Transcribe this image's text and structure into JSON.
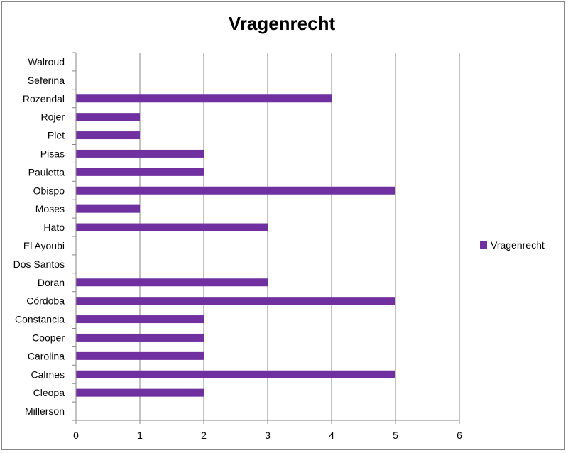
{
  "chart_data": {
    "type": "bar",
    "orientation": "horizontal",
    "title": "Vragenrecht",
    "xlabel": "",
    "ylabel": "",
    "xlim": [
      0,
      6
    ],
    "x_ticks": [
      "0",
      "1",
      "2",
      "3",
      "4",
      "5",
      "6"
    ],
    "grid": "vertical",
    "legend_position": "right",
    "categories": [
      "Millerson",
      "Cleopa",
      "Calmes",
      "Carolina",
      "Cooper",
      "Constancia",
      "Córdoba",
      "Doran",
      "Dos Santos",
      "El Ayoubi",
      "Hato",
      "Moses",
      "Obispo",
      "Pauletta",
      "Pisas",
      "Plet",
      "Rojer",
      "Rozendal",
      "Seferina",
      "Walroud"
    ],
    "series": [
      {
        "name": "Vragenrecht",
        "color": "#7030a0",
        "values": [
          0,
          2,
          5,
          2,
          2,
          2,
          5,
          3,
          0,
          0,
          3,
          1,
          5,
          2,
          2,
          1,
          1,
          4,
          0,
          0
        ]
      }
    ]
  }
}
